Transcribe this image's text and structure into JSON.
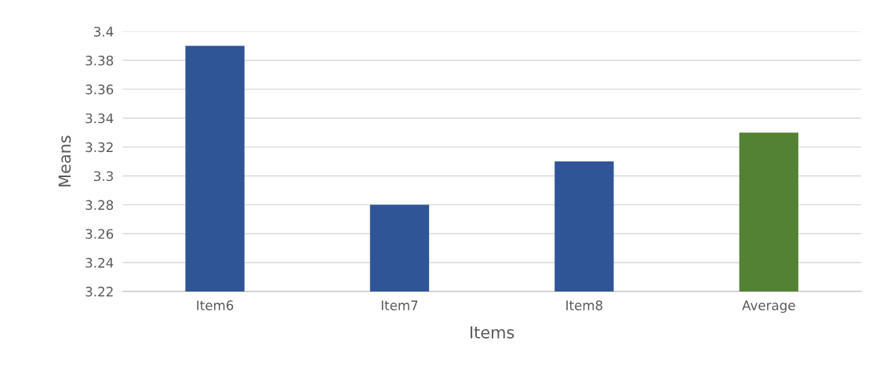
{
  "chart_data": {
    "type": "bar",
    "xlabel": "Items",
    "ylabel": "Means",
    "categories": [
      "Item6",
      "Item7",
      "Item8",
      "Average"
    ],
    "values": [
      3.39,
      3.28,
      3.31,
      3.33
    ],
    "colors": [
      "#2f5597",
      "#2f5597",
      "#2f5597",
      "#548235"
    ],
    "ylim": [
      3.22,
      3.4
    ],
    "yticks": [
      3.22,
      3.24,
      3.26,
      3.28,
      3.3,
      3.32,
      3.34,
      3.36,
      3.38,
      3.4
    ],
    "grid": "y",
    "legend": false
  }
}
